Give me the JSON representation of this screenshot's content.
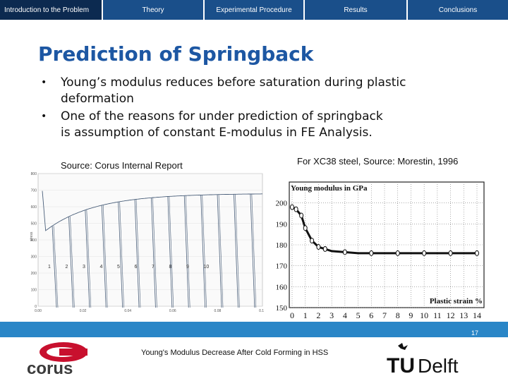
{
  "nav": {
    "tabs": [
      {
        "label": "Introduction to the Problem",
        "active": true
      },
      {
        "label": "Theory",
        "active": false
      },
      {
        "label": "Experimental Procedure",
        "active": false
      },
      {
        "label": "Results",
        "active": false
      },
      {
        "label": "Conclusions",
        "active": false
      }
    ]
  },
  "slide": {
    "title": "Prediction of Springback",
    "bullets": [
      {
        "text": "Young’s modulus reduces before saturation during plastic",
        "cont": "deformation"
      },
      {
        "text": "One of the reasons for under prediction of springback",
        "cont": "is assumption of constant E-modulus in FE Analysis."
      }
    ],
    "source_left": "Source: Corus Internal Report",
    "source_right": "For XC38 steel, Source: Morestin, 1996"
  },
  "chart_data": [
    {
      "type": "line",
      "title": "",
      "cycle_labels": [
        "1",
        "2",
        "3",
        "4",
        "5",
        "6",
        "7",
        "8",
        "9",
        "10"
      ],
      "x_ticks": [
        "0.00",
        "0.02",
        "0.04",
        "0.06",
        "0.08",
        "0.10"
      ],
      "y_ticks": [
        "0",
        "100",
        "200",
        "300",
        "400",
        "500",
        "600",
        "700",
        "800"
      ],
      "ylabel": "stress"
    },
    {
      "type": "line",
      "title": "Young modulus in GPa",
      "xlabel": "Plastic strain %",
      "ylim": [
        150,
        210
      ],
      "xlim": [
        0,
        14
      ],
      "x_ticks": [
        "0",
        "1",
        "2",
        "3",
        "4",
        "5",
        "6",
        "7",
        "8",
        "9",
        "10",
        "11",
        "12",
        "13",
        "14"
      ],
      "y_ticks": [
        "150",
        "160",
        "170",
        "180",
        "190",
        "200"
      ],
      "x": [
        0,
        0.3,
        0.7,
        1.0,
        1.5,
        2.0,
        2.5,
        3.0,
        4.0,
        5.0,
        6.0,
        7.0,
        8.0,
        9.0,
        10.0,
        11.0,
        12.0,
        13.0,
        14.0
      ],
      "y": [
        198,
        197,
        194,
        188,
        182,
        179,
        178,
        177,
        176.5,
        176,
        176,
        176,
        176,
        176,
        176,
        176,
        176,
        176,
        176
      ]
    }
  ],
  "footer": {
    "page_number": "17",
    "title": "Young's Modulus Decrease After Cold Forming in HSS"
  },
  "logos": {
    "left_text": "corus",
    "right_text_t": "TU",
    "right_text": "Delft"
  }
}
